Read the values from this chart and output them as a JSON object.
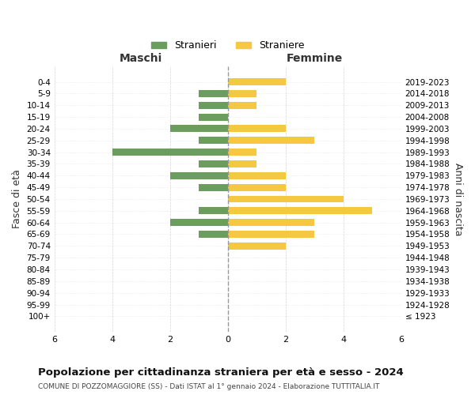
{
  "age_groups": [
    "100+",
    "95-99",
    "90-94",
    "85-89",
    "80-84",
    "75-79",
    "70-74",
    "65-69",
    "60-64",
    "55-59",
    "50-54",
    "45-49",
    "40-44",
    "35-39",
    "30-34",
    "25-29",
    "20-24",
    "15-19",
    "10-14",
    "5-9",
    "0-4"
  ],
  "birth_years": [
    "≤ 1923",
    "1924-1928",
    "1929-1933",
    "1934-1938",
    "1939-1943",
    "1944-1948",
    "1949-1953",
    "1954-1958",
    "1959-1963",
    "1964-1968",
    "1969-1973",
    "1974-1978",
    "1979-1983",
    "1984-1988",
    "1989-1993",
    "1994-1998",
    "1999-2003",
    "2004-2008",
    "2009-2013",
    "2014-2018",
    "2019-2023"
  ],
  "males": [
    0,
    0,
    0,
    0,
    0,
    0,
    0,
    1,
    2,
    1,
    0,
    1,
    2,
    1,
    4,
    1,
    2,
    1,
    1,
    1,
    0
  ],
  "females": [
    0,
    0,
    0,
    0,
    0,
    0,
    2,
    3,
    3,
    5,
    4,
    2,
    2,
    1,
    1,
    3,
    2,
    0,
    1,
    1,
    2
  ],
  "male_color": "#6b9e5e",
  "female_color": "#f5c842",
  "title": "Popolazione per cittadinanza straniera per età e sesso - 2024",
  "subtitle": "COMUNE DI POZZOMAGGIORE (SS) - Dati ISTAT al 1° gennaio 2024 - Elaborazione TUTTITALIA.IT",
  "xlabel_left": "Maschi",
  "xlabel_right": "Femmine",
  "ylabel_left": "Fasce di età",
  "ylabel_right": "Anni di nascita",
  "legend_male": "Stranieri",
  "legend_female": "Straniere",
  "xlim": 6,
  "background_color": "#ffffff",
  "grid_color": "#cccccc"
}
